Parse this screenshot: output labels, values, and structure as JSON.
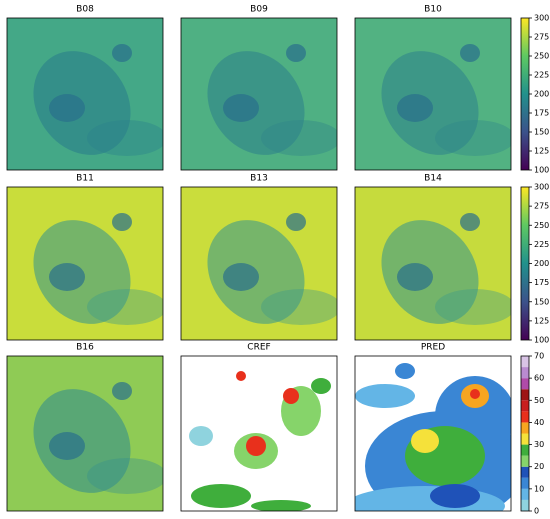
{
  "panels": [
    {
      "title": "B08"
    },
    {
      "title": "B09"
    },
    {
      "title": "B10"
    },
    {
      "title": "B11"
    },
    {
      "title": "B13"
    },
    {
      "title": "B14"
    },
    {
      "title": "B16"
    },
    {
      "title": "CREF"
    },
    {
      "title": "PRED"
    }
  ],
  "colorbars": [
    {
      "lim": [
        100,
        300
      ],
      "ticks": [
        100,
        125,
        150,
        175,
        200,
        225,
        250,
        275,
        300
      ]
    },
    {
      "lim": [
        100,
        300
      ],
      "ticks": [
        100,
        125,
        150,
        175,
        200,
        225,
        250,
        275,
        300
      ]
    },
    {
      "lim": [
        0,
        70
      ],
      "ticks": [
        0,
        10,
        20,
        30,
        40,
        50,
        60,
        70
      ],
      "colors": [
        "#8fd3de",
        "#63b5e6",
        "#3a86d4",
        "#1f52b8",
        "#86d46a",
        "#3fae3c",
        "#f5e13a",
        "#f7a520",
        "#e8301c",
        "#c81e1e",
        "#9e1414",
        "#b04aa8",
        "#b98bd0",
        "#d9c4e6"
      ]
    }
  ]
}
